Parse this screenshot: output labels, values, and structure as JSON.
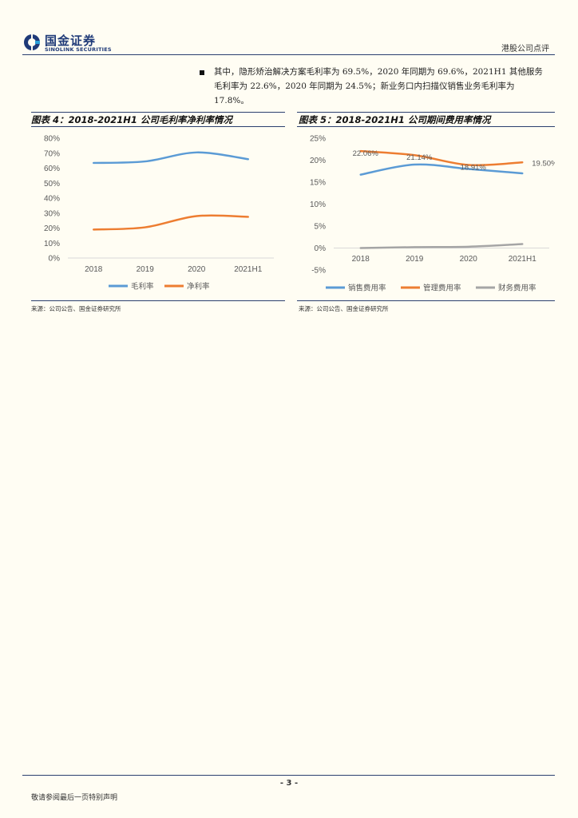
{
  "header": {
    "logo_cn": "国金证券",
    "logo_en": "SINOLINK SECURITIES",
    "report_type": "港股公司点评"
  },
  "body": {
    "paragraph": "其中，隐形矫治解决方案毛利率为 69.5%，2020 年同期为 69.6%，2021H1 其他服务毛利率为 22.6%，2020 年同期为 24.5%；新业务口内扫描仪销售业务毛利率为 17.8%。"
  },
  "charts": {
    "left": {
      "title": "图表 4：2018-2021H1 公司毛利率净利率情况",
      "source": "来源：公司公告、国金证券研究所"
    },
    "right": {
      "title": "图表 5：2018-2021H1 公司期间费用率情况",
      "source": "来源：公司公告、国金证券研究所"
    }
  },
  "chart_data": [
    {
      "type": "line",
      "title": "图表 4：2018-2021H1 公司毛利率净利率情况",
      "categories": [
        "2018",
        "2019",
        "2020",
        "2021H1"
      ],
      "ylim": [
        0,
        80
      ],
      "yticks": [
        "0%",
        "10%",
        "20%",
        "30%",
        "40%",
        "50%",
        "60%",
        "70%",
        "80%"
      ],
      "series": [
        {
          "name": "毛利率",
          "color": "#5b9bd5",
          "values": [
            63.5,
            64.5,
            70.5,
            66.0
          ]
        },
        {
          "name": "净利率",
          "color": "#ed7d31",
          "values": [
            19.0,
            20.5,
            28.0,
            27.5
          ]
        }
      ],
      "legend": "bottom"
    },
    {
      "type": "line",
      "title": "图表 5：2018-2021H1 公司期间费用率情况",
      "categories": [
        "2018",
        "2019",
        "2020",
        "2021H1"
      ],
      "ylim": [
        -5,
        25
      ],
      "yticks": [
        "-5%",
        "0%",
        "5%",
        "10%",
        "15%",
        "20%",
        "25%"
      ],
      "series": [
        {
          "name": "销售费用率",
          "color": "#5b9bd5",
          "values": [
            16.7,
            19.0,
            18.0,
            17.0
          ]
        },
        {
          "name": "管理费用率",
          "color": "#ed7d31",
          "values": [
            22.06,
            21.14,
            18.91,
            19.5
          ],
          "labels": [
            "22.06%",
            "21.14%",
            "18.91%",
            "19.50%"
          ]
        },
        {
          "name": "财务费用率",
          "color": "#a5a5a5",
          "values": [
            0.0,
            0.2,
            0.3,
            0.9
          ]
        }
      ],
      "legend": "bottom"
    }
  ],
  "footer": {
    "page_number": "- 3 -",
    "note": "敬请参阅最后一页特别声明"
  }
}
